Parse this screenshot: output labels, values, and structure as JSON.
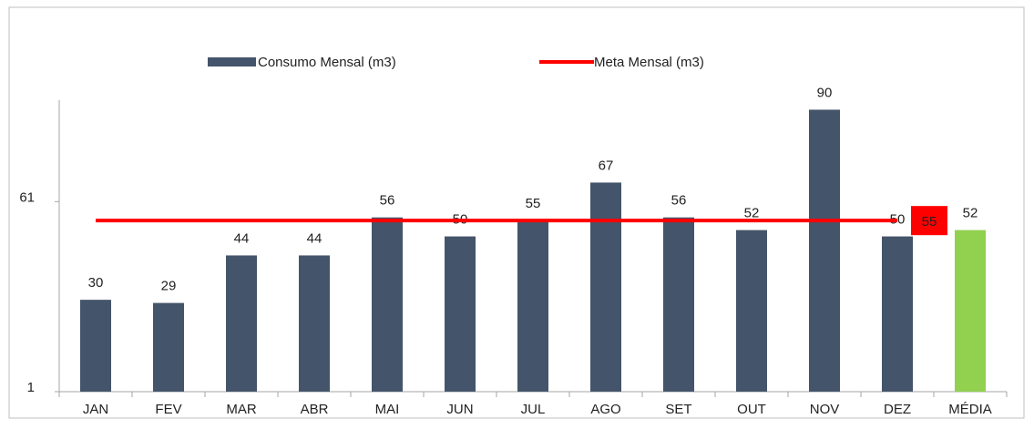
{
  "chart_data": {
    "type": "bar",
    "categories": [
      "JAN",
      "FEV",
      "MAR",
      "ABR",
      "MAI",
      "JUN",
      "JUL",
      "AGO",
      "SET",
      "OUT",
      "NOV",
      "DEZ",
      "MÉDIA"
    ],
    "series": [
      {
        "name": "Consumo Mensal (m3)",
        "type": "bar",
        "color": "#44546a",
        "colors": [
          "#44546a",
          "#44546a",
          "#44546a",
          "#44546a",
          "#44546a",
          "#44546a",
          "#44546a",
          "#44546a",
          "#44546a",
          "#44546a",
          "#44546a",
          "#44546a",
          "#92d050"
        ],
        "values": [
          30,
          29,
          44,
          44,
          56,
          50,
          55,
          67,
          56,
          52,
          90,
          50,
          52
        ]
      },
      {
        "name": "Meta Mensal (m3)",
        "type": "line",
        "color": "#ff0000",
        "values": [
          55,
          55,
          55,
          55,
          55,
          55,
          55,
          55,
          55,
          55,
          55,
          55,
          null
        ]
      }
    ],
    "ylim": [
      1,
      93
    ],
    "yticks": [
      1,
      61
    ]
  }
}
